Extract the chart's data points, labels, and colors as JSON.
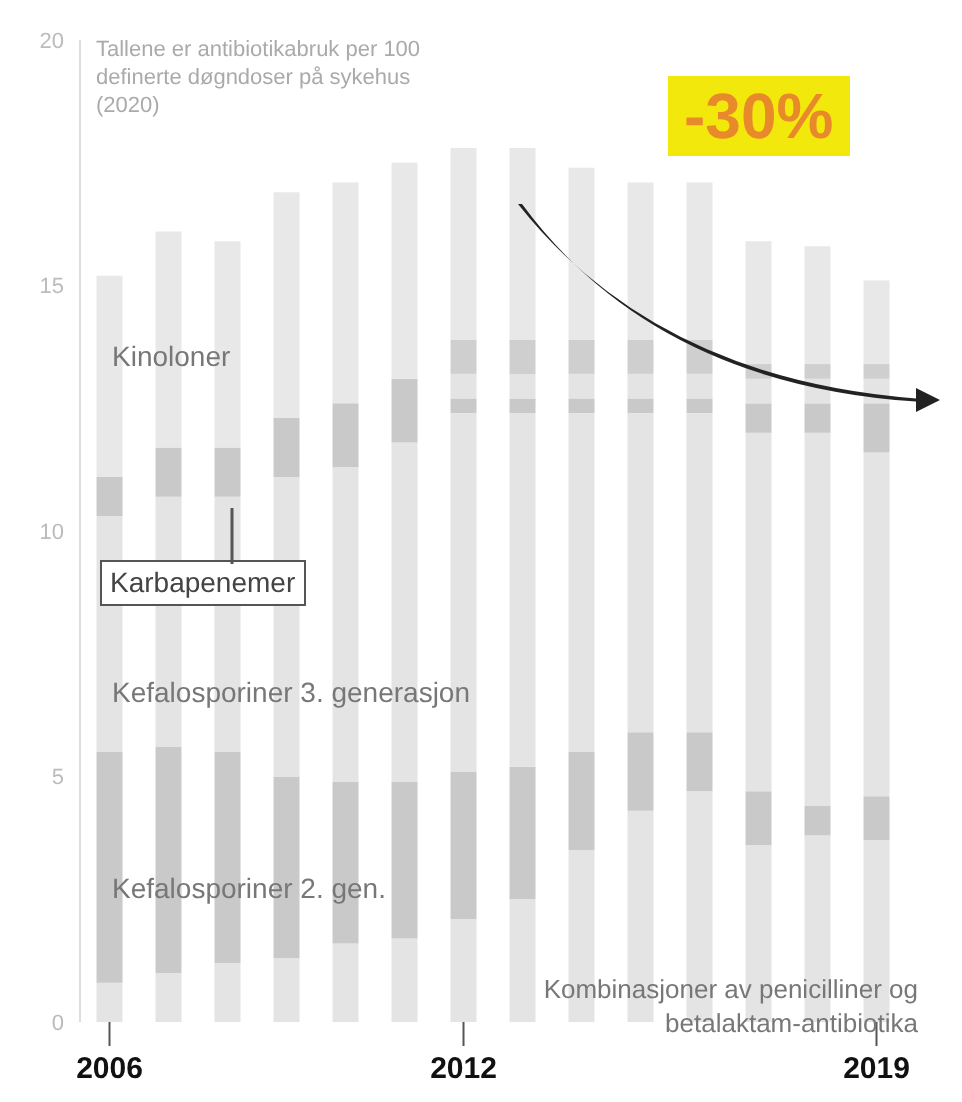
{
  "chart_data": {
    "type": "bar",
    "stacked": true,
    "title": "Tallene er antibiotikabruk per 100 definerte døgndoser på sykehus (2020)",
    "categories": [
      "2006",
      null,
      null,
      null,
      null,
      null,
      "2012",
      null,
      null,
      null,
      null,
      null,
      null,
      "2019"
    ],
    "series": [
      {
        "name": "Kombinasjoner av penicilliner og betalaktam-antibiotika",
        "color": "#e4e4e4",
        "values": [
          0.8,
          1.0,
          1.2,
          1.3,
          1.6,
          1.7,
          2.1,
          2.5,
          3.5,
          4.3,
          4.7,
          3.6,
          3.8,
          3.7
        ]
      },
      {
        "name": "Kefalosporiner 2. gen.",
        "color": "#c9c9c9",
        "values": [
          4.7,
          4.6,
          4.3,
          3.7,
          3.3,
          3.2,
          3.0,
          2.7,
          2.0,
          1.6,
          1.2,
          1.1,
          0.6,
          0.9
        ]
      },
      {
        "name": "Kefalosporiner 3. generasjon",
        "color": "#e4e4e4",
        "values": [
          4.8,
          5.1,
          5.2,
          6.1,
          6.4,
          6.9,
          7.3,
          7.2,
          6.9,
          6.5,
          6.5,
          7.3,
          7.6,
          7.0
        ]
      },
      {
        "name": "Karbapenemer",
        "color": "#c9c9c9",
        "values": [
          0.8,
          1.0,
          1.0,
          1.2,
          1.3,
          1.3,
          0.3,
          0.3,
          0.3,
          0.3,
          0.3,
          0.6,
          0.6,
          1.0
        ]
      },
      {
        "color": "#e4e4e4",
        "values": [
          0,
          0,
          0,
          0,
          0,
          0,
          0.5,
          0.5,
          0.5,
          0.5,
          0.5,
          0.5,
          0.5,
          0.5
        ]
      },
      {
        "color": "#cfcfcf",
        "values": [
          0,
          0,
          0,
          0,
          0,
          0,
          0.7,
          0.7,
          0.7,
          0.7,
          0.7,
          0.3,
          0.3,
          0.3
        ]
      },
      {
        "name": "Kinoloner",
        "color": "#e8e8e8",
        "values": [
          4.1,
          4.4,
          4.2,
          4.6,
          4.5,
          4.4,
          3.9,
          3.9,
          3.5,
          3.2,
          3.2,
          2.5,
          2.4,
          1.7
        ]
      }
    ],
    "ylim": [
      0,
      20
    ],
    "yticks": [
      0,
      5,
      10,
      15,
      20
    ],
    "annotations": [
      "-30%"
    ]
  }
}
